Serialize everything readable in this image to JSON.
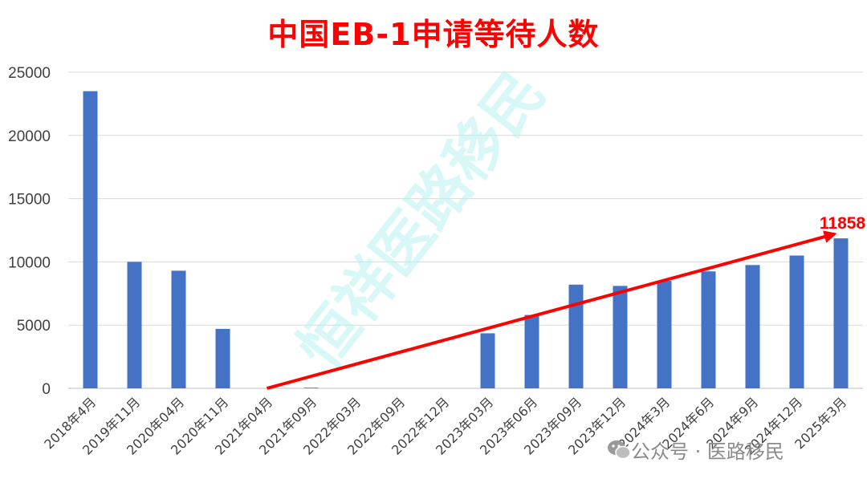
{
  "chart_data": {
    "type": "bar",
    "title": "中国EB-1申请等待人数",
    "categories": [
      "2018年4月",
      "2019年11月",
      "2020年04月",
      "2020年11月",
      "2021年04月",
      "2021年09月",
      "2022年03月",
      "2022年09月",
      "2022年12月",
      "2023年03月",
      "2023年06月",
      "2023年09月",
      "2023年12月",
      "2024年3月",
      "2024年6月",
      "2024年9月",
      "2024年12月",
      "2025年3月"
    ],
    "values": [
      23500,
      10000,
      9300,
      4700,
      0,
      50,
      0,
      0,
      0,
      4350,
      5800,
      8200,
      8100,
      8500,
      9250,
      9750,
      10500,
      11858
    ],
    "ylim": [
      0,
      25000
    ],
    "yticks": [
      "0",
      "5000",
      "10000",
      "15000",
      "20000",
      "25000"
    ],
    "grid": true,
    "bar_color": "#4472c4",
    "annotations": [
      {
        "text": "11858",
        "color": "#ff0000"
      }
    ],
    "trend_arrow": {
      "from_category": "2021年04月",
      "from_value": 0,
      "to_category": "2025年3月",
      "to_value": 12200,
      "color": "#ff0000"
    }
  },
  "watermark": {
    "text": "恒祥医路移民",
    "color": "#b8f3f1"
  },
  "credit": {
    "text": "公众号 · 医路移民",
    "icon": "wechat-icon"
  }
}
